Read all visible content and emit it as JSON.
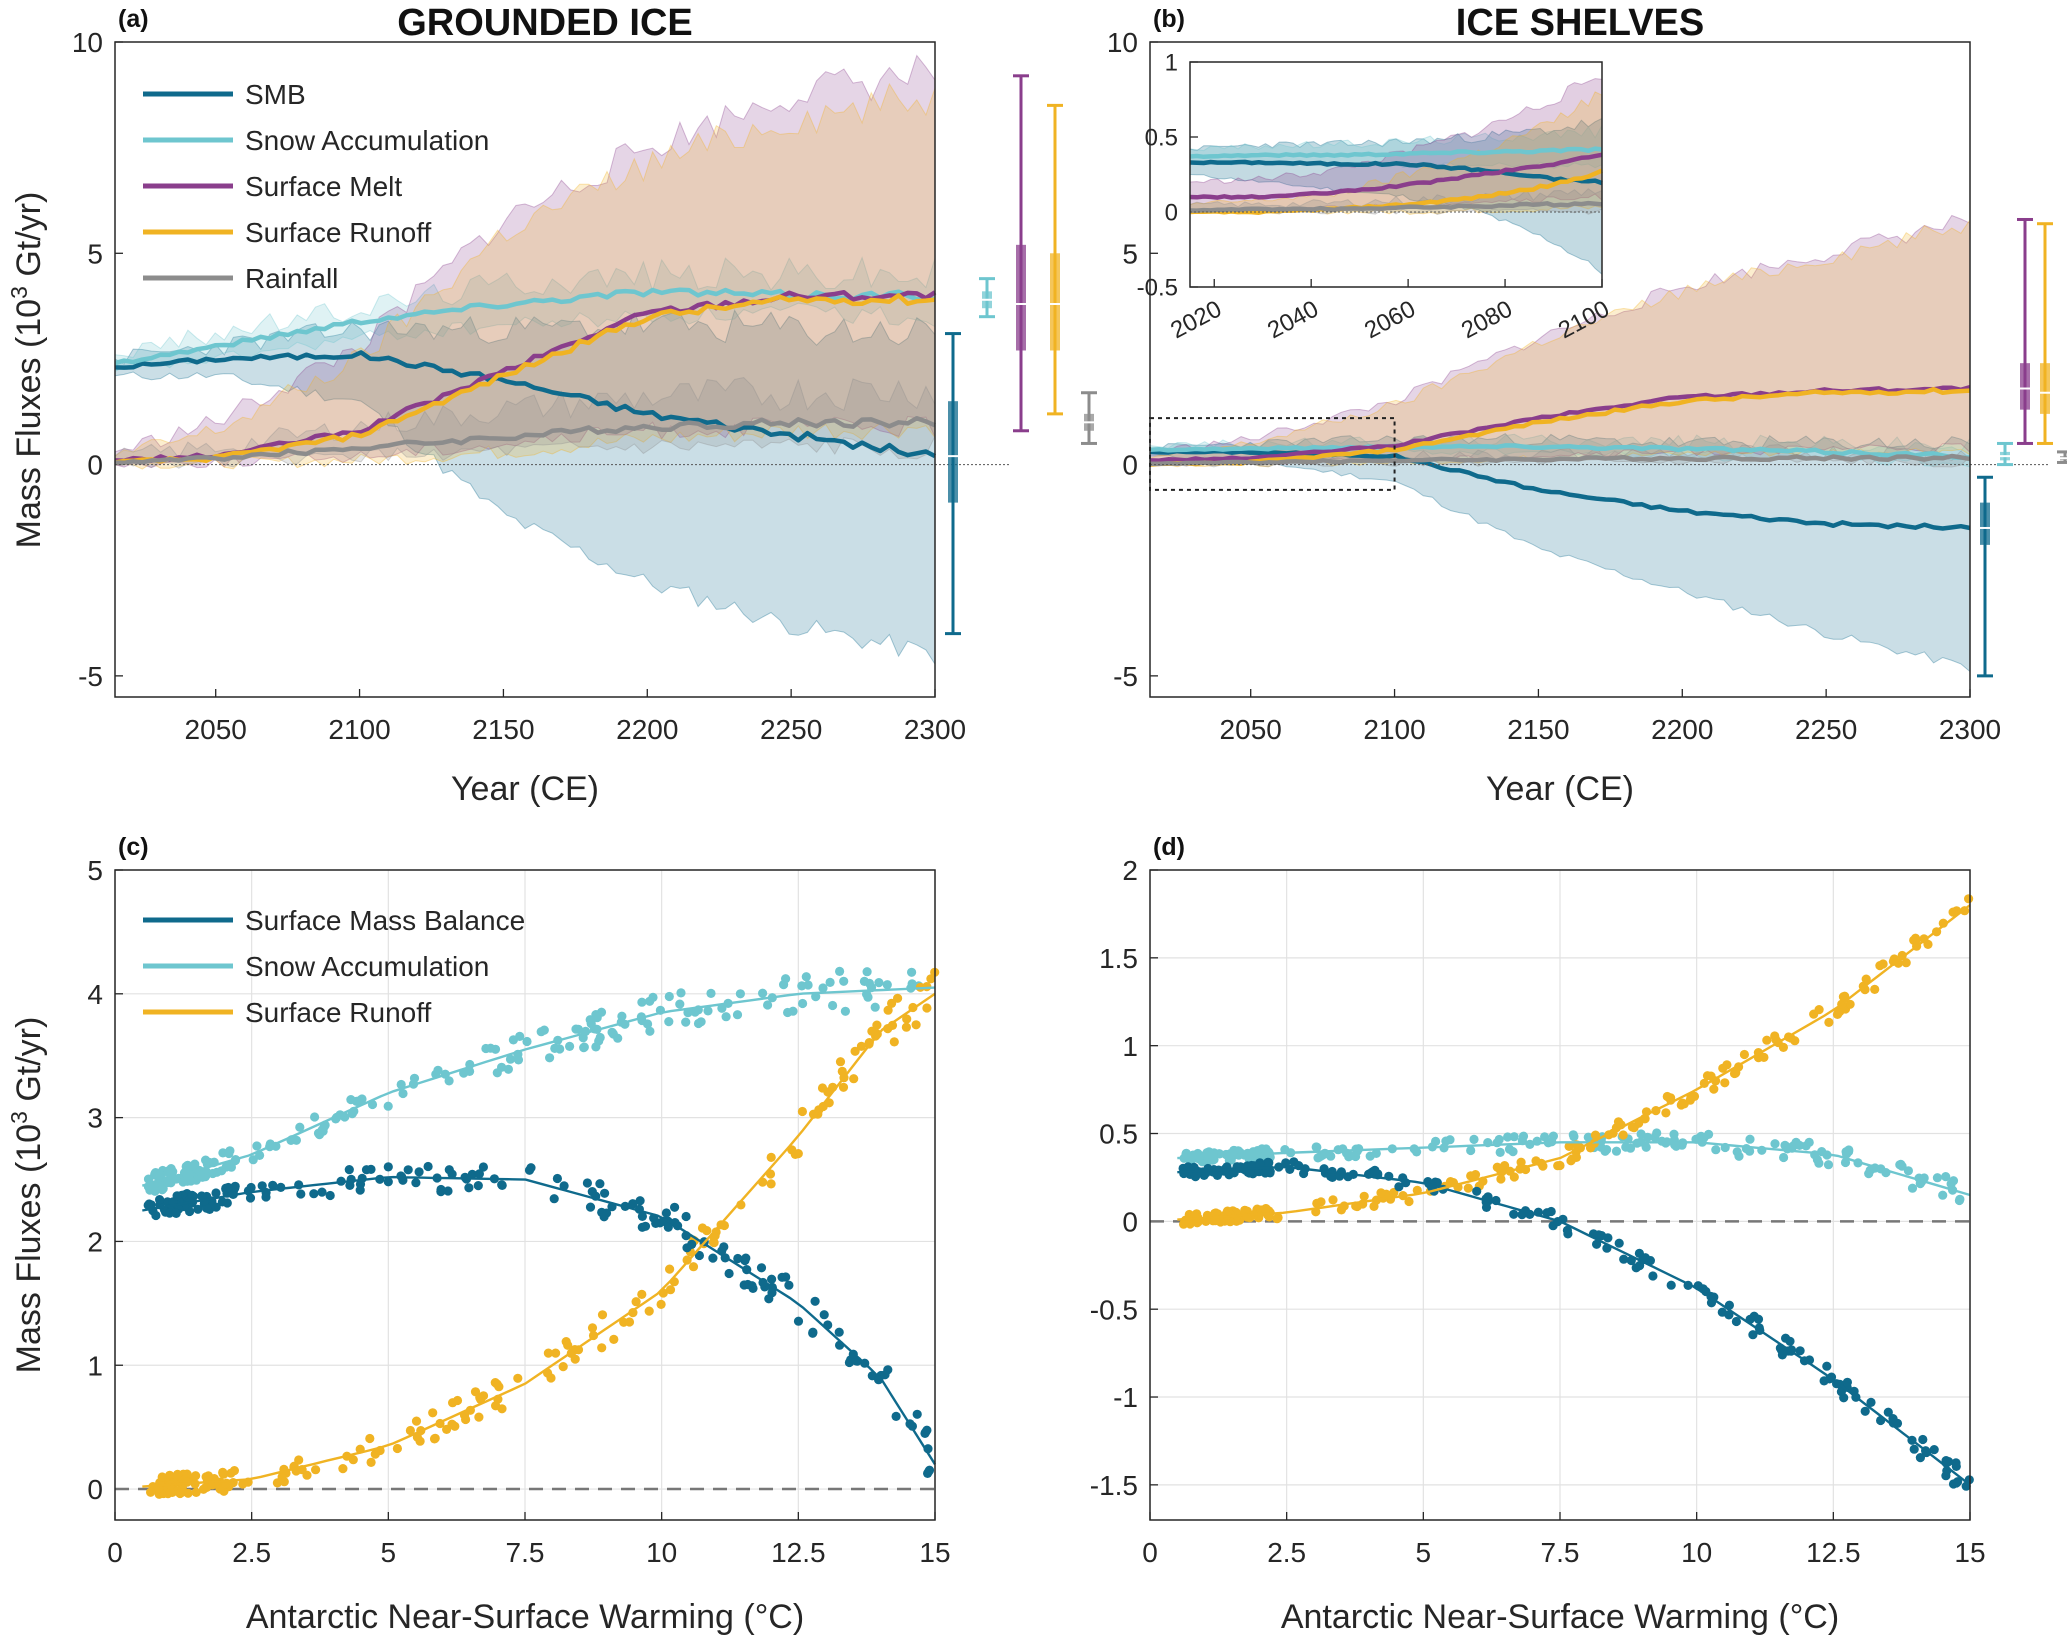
{
  "panels": [
    {
      "letter": "(a)",
      "title": "GROUNDED ICE"
    },
    {
      "letter": "(b)",
      "title": "ICE SHELVES"
    },
    {
      "letter": "(c)",
      "title": ""
    },
    {
      "letter": "(d)",
      "title": ""
    }
  ],
  "colors": {
    "smb": "#0f6a8c",
    "snow": "#6ec6cf",
    "melt": "#8a3e8c",
    "runoff": "#f0b323",
    "rain": "#8c8c8c"
  },
  "legend_top": [
    "SMB",
    "Snow Accumulation",
    "Surface Melt",
    "Surface Runoff",
    "Rainfall"
  ],
  "legend_bottom": [
    "Surface Mass Balance",
    "Snow Accumulation",
    "Surface Runoff"
  ],
  "chart_data": [
    {
      "panel": "a",
      "type": "line",
      "title": "GROUNDED ICE",
      "xlabel": "Year (CE)",
      "ylabel": "Mass Fluxes (10^3 Gt/yr)",
      "xlim": [
        2015,
        2300
      ],
      "ylim": [
        -5.5,
        10
      ],
      "xticks": [
        2050,
        2100,
        2150,
        2200,
        2250,
        2300
      ],
      "yticks": [
        -5,
        0,
        5,
        10
      ],
      "x": [
        2015,
        2050,
        2100,
        2150,
        2200,
        2250,
        2300
      ],
      "series": [
        {
          "name": "SMB",
          "values": [
            2.3,
            2.5,
            2.6,
            2.0,
            1.2,
            0.7,
            0.2
          ],
          "band_low": [
            2.1,
            2.1,
            1.5,
            -1.2,
            -2.8,
            -3.8,
            -4.5
          ],
          "band_high": [
            2.5,
            2.8,
            3.2,
            3.2,
            3.3,
            3.2,
            3.1
          ]
        },
        {
          "name": "Snow Accumulation",
          "values": [
            2.4,
            2.8,
            3.4,
            3.8,
            4.1,
            4.0,
            4.0
          ],
          "band_low": [
            2.2,
            2.5,
            3.0,
            3.3,
            3.5,
            3.6,
            3.5
          ],
          "band_high": [
            2.6,
            3.1,
            3.7,
            4.3,
            4.5,
            4.5,
            4.5
          ]
        },
        {
          "name": "Surface Melt",
          "values": [
            0.1,
            0.2,
            0.8,
            2.2,
            3.6,
            4.0,
            4.0
          ],
          "band_low": [
            0.0,
            0.05,
            0.2,
            0.5,
            0.8,
            0.9,
            0.9
          ],
          "band_high": [
            0.3,
            1.0,
            2.8,
            5.8,
            7.5,
            8.8,
            9.3
          ]
        },
        {
          "name": "Surface Runoff",
          "values": [
            0.05,
            0.15,
            0.7,
            2.1,
            3.5,
            3.9,
            3.9
          ],
          "band_low": [
            0.0,
            0.02,
            0.1,
            0.3,
            0.6,
            0.8,
            0.9
          ],
          "band_high": [
            0.2,
            0.8,
            2.5,
            5.5,
            7.1,
            8.2,
            8.7
          ]
        },
        {
          "name": "Rainfall",
          "values": [
            0.05,
            0.15,
            0.4,
            0.65,
            0.9,
            1.0,
            1.0
          ],
          "band_low": [
            0.0,
            0.05,
            0.2,
            0.3,
            0.4,
            0.4,
            0.4
          ],
          "band_high": [
            0.2,
            0.4,
            0.9,
            1.3,
            1.6,
            1.7,
            1.8
          ]
        }
      ],
      "boxplots": [
        {
          "name": "SMB",
          "min": -4.0,
          "q1": -0.9,
          "median": 0.2,
          "q3": 1.5,
          "max": 3.1
        },
        {
          "name": "Snow Accumulation",
          "min": 3.5,
          "q1": 3.7,
          "median": 3.9,
          "q3": 4.1,
          "max": 4.4
        },
        {
          "name": "Surface Melt",
          "min": 0.8,
          "q1": 2.7,
          "median": 3.8,
          "q3": 5.2,
          "max": 9.2
        },
        {
          "name": "Surface Runoff",
          "min": 1.2,
          "q1": 2.7,
          "median": 3.8,
          "q3": 5.0,
          "max": 8.5
        },
        {
          "name": "Rainfall",
          "min": 0.5,
          "q1": 0.8,
          "median": 1.0,
          "q3": 1.2,
          "max": 1.7
        }
      ]
    },
    {
      "panel": "b",
      "type": "line",
      "title": "ICE SHELVES",
      "xlabel": "Year (CE)",
      "ylabel": "",
      "xlim": [
        2015,
        2300
      ],
      "ylim": [
        -5.5,
        10
      ],
      "xticks": [
        2050,
        2100,
        2150,
        2200,
        2250,
        2300
      ],
      "yticks": [
        -5,
        0,
        5,
        10
      ],
      "x": [
        2015,
        2050,
        2100,
        2150,
        2200,
        2250,
        2300
      ],
      "series": [
        {
          "name": "SMB",
          "values": [
            0.3,
            0.3,
            0.2,
            -0.6,
            -1.1,
            -1.4,
            -1.5
          ],
          "band_low": [
            0.2,
            0.1,
            -0.4,
            -2.0,
            -3.0,
            -4.0,
            -4.8
          ],
          "band_high": [
            0.4,
            0.5,
            0.6,
            0.6,
            0.5,
            0.5,
            0.5
          ]
        },
        {
          "name": "Snow Accumulation",
          "values": [
            0.35,
            0.38,
            0.42,
            0.43,
            0.38,
            0.3,
            0.2
          ],
          "band_low": [
            0.3,
            0.3,
            0.3,
            0.3,
            0.2,
            0.1,
            0.05
          ],
          "band_high": [
            0.45,
            0.5,
            0.55,
            0.6,
            0.55,
            0.5,
            0.45
          ]
        },
        {
          "name": "Surface Melt",
          "values": [
            0.1,
            0.15,
            0.45,
            1.1,
            1.6,
            1.75,
            1.8
          ],
          "band_low": [
            0.0,
            0.05,
            0.1,
            0.2,
            0.3,
            0.35,
            0.4
          ],
          "band_high": [
            0.3,
            0.6,
            1.5,
            3.0,
            4.2,
            5.0,
            5.8
          ]
        },
        {
          "name": "Surface Runoff",
          "values": [
            0.0,
            0.05,
            0.35,
            1.0,
            1.5,
            1.7,
            1.75
          ],
          "band_low": [
            0.0,
            0.0,
            0.05,
            0.15,
            0.25,
            0.3,
            0.35
          ],
          "band_high": [
            0.15,
            0.5,
            1.4,
            2.9,
            4.1,
            4.9,
            5.7
          ]
        },
        {
          "name": "Rainfall",
          "values": [
            0.02,
            0.05,
            0.1,
            0.13,
            0.15,
            0.16,
            0.16
          ],
          "band_low": [
            0.0,
            0.0,
            0.02,
            0.04,
            0.05,
            0.06,
            0.06
          ],
          "band_high": [
            0.05,
            0.1,
            0.2,
            0.25,
            0.3,
            0.3,
            0.3
          ]
        }
      ],
      "boxplots": [
        {
          "name": "SMB",
          "min": -5.0,
          "q1": -1.9,
          "median": -1.5,
          "q3": -0.9,
          "max": -0.3
        },
        {
          "name": "Snow Accumulation",
          "min": 0.0,
          "q1": 0.1,
          "median": 0.2,
          "q3": 0.3,
          "max": 0.5
        },
        {
          "name": "Surface Melt",
          "min": 0.5,
          "q1": 1.3,
          "median": 1.8,
          "q3": 2.4,
          "max": 5.8
        },
        {
          "name": "Surface Runoff",
          "min": 0.5,
          "q1": 1.2,
          "median": 1.7,
          "q3": 2.4,
          "max": 5.7
        },
        {
          "name": "Rainfall",
          "min": 0.05,
          "q1": 0.1,
          "median": 0.15,
          "q3": 0.2,
          "max": 0.3
        }
      ],
      "inset": {
        "xlim": [
          2015,
          2100
        ],
        "ylim": [
          -0.5,
          1
        ],
        "xticks": [
          2020,
          2040,
          2060,
          2080,
          2100
        ],
        "yticks": [
          -0.5,
          0,
          0.5,
          1
        ],
        "x": [
          2015,
          2030,
          2045,
          2060,
          2075,
          2090,
          2100
        ],
        "series": [
          {
            "name": "SMB",
            "values": [
              0.33,
              0.33,
              0.32,
              0.32,
              0.28,
              0.22,
              0.2
            ],
            "band_low": [
              0.25,
              0.2,
              0.15,
              0.1,
              0.0,
              -0.2,
              -0.4
            ],
            "band_high": [
              0.42,
              0.45,
              0.45,
              0.47,
              0.5,
              0.55,
              0.6
            ]
          },
          {
            "name": "Snow Accumulation",
            "values": [
              0.37,
              0.38,
              0.38,
              0.39,
              0.4,
              0.41,
              0.42
            ],
            "band_low": [
              0.32,
              0.32,
              0.31,
              0.31,
              0.31,
              0.31,
              0.31
            ],
            "band_high": [
              0.42,
              0.44,
              0.45,
              0.47,
              0.5,
              0.52,
              0.54
            ]
          },
          {
            "name": "Surface Melt",
            "values": [
              0.1,
              0.1,
              0.13,
              0.18,
              0.25,
              0.32,
              0.38
            ],
            "band_low": [
              0.0,
              0.02,
              0.03,
              0.05,
              0.07,
              0.08,
              0.1
            ],
            "band_high": [
              0.2,
              0.22,
              0.28,
              0.4,
              0.55,
              0.75,
              0.92
            ]
          },
          {
            "name": "Surface Runoff",
            "values": [
              0.0,
              0.0,
              0.02,
              0.05,
              0.1,
              0.18,
              0.27
            ],
            "band_low": [
              0.0,
              0.0,
              0.0,
              0.0,
              0.01,
              0.02,
              0.03
            ],
            "band_high": [
              0.05,
              0.08,
              0.12,
              0.25,
              0.4,
              0.6,
              0.8
            ]
          },
          {
            "name": "Rainfall",
            "values": [
              0.01,
              0.02,
              0.02,
              0.03,
              0.04,
              0.05,
              0.06
            ],
            "band_low": [
              0.0,
              0.0,
              0.0,
              0.0,
              0.0,
              0.0,
              0.0
            ],
            "band_high": [
              0.05,
              0.05,
              0.06,
              0.08,
              0.1,
              0.12,
              0.15
            ]
          }
        ]
      }
    },
    {
      "panel": "c",
      "type": "scatter",
      "xlabel": "Antarctic Near-Surface Warming (°C)",
      "ylabel": "Mass Fluxes (10^3 Gt/yr)",
      "xlim": [
        0,
        15
      ],
      "ylim": [
        -0.25,
        5
      ],
      "xticks": [
        0,
        2.5,
        5,
        7.5,
        10,
        12.5,
        15
      ],
      "yticks": [
        0,
        1,
        2,
        3,
        4,
        5
      ],
      "series": [
        {
          "name": "Surface Mass Balance",
          "fit": [
            [
              0.5,
              2.25
            ],
            [
              2.5,
              2.4
            ],
            [
              5,
              2.52
            ],
            [
              7.5,
              2.5
            ],
            [
              10,
              2.2
            ],
            [
              12.5,
              1.5
            ],
            [
              14,
              0.9
            ],
            [
              15,
              0.2
            ]
          ]
        },
        {
          "name": "Snow Accumulation",
          "fit": [
            [
              0.5,
              2.45
            ],
            [
              2.5,
              2.7
            ],
            [
              5,
              3.2
            ],
            [
              7.5,
              3.55
            ],
            [
              10,
              3.85
            ],
            [
              12.5,
              4.0
            ],
            [
              15,
              4.05
            ]
          ]
        },
        {
          "name": "Surface Runoff",
          "fit": [
            [
              0.5,
              0.02
            ],
            [
              2.5,
              0.08
            ],
            [
              5,
              0.35
            ],
            [
              7.5,
              0.85
            ],
            [
              10,
              1.6
            ],
            [
              12.5,
              2.85
            ],
            [
              14,
              3.7
            ],
            [
              15,
              4.0
            ]
          ]
        }
      ]
    },
    {
      "panel": "d",
      "type": "scatter",
      "xlabel": "Antarctic Near-Surface Warming (°C)",
      "ylabel": "",
      "xlim": [
        0,
        15
      ],
      "ylim": [
        -1.7,
        2
      ],
      "xticks": [
        0,
        2.5,
        5,
        7.5,
        10,
        12.5,
        15
      ],
      "yticks": [
        -1.5,
        -1,
        -0.5,
        0,
        0.5,
        1,
        1.5,
        2
      ],
      "series": [
        {
          "name": "Surface Mass Balance",
          "fit": [
            [
              0.5,
              0.28
            ],
            [
              2.5,
              0.31
            ],
            [
              5,
              0.22
            ],
            [
              7.5,
              0.0
            ],
            [
              10,
              -0.38
            ],
            [
              12.5,
              -0.9
            ],
            [
              15,
              -1.5
            ]
          ]
        },
        {
          "name": "Snow Accumulation",
          "fit": [
            [
              0.5,
              0.36
            ],
            [
              2.5,
              0.39
            ],
            [
              5,
              0.42
            ],
            [
              7.5,
              0.45
            ],
            [
              10,
              0.45
            ],
            [
              12.5,
              0.38
            ],
            [
              15,
              0.15
            ]
          ]
        },
        {
          "name": "Surface Runoff",
          "fit": [
            [
              0.5,
              0.01
            ],
            [
              2.5,
              0.05
            ],
            [
              5,
              0.16
            ],
            [
              7.5,
              0.36
            ],
            [
              10,
              0.75
            ],
            [
              12.5,
              1.2
            ],
            [
              15,
              1.8
            ]
          ]
        }
      ]
    }
  ]
}
